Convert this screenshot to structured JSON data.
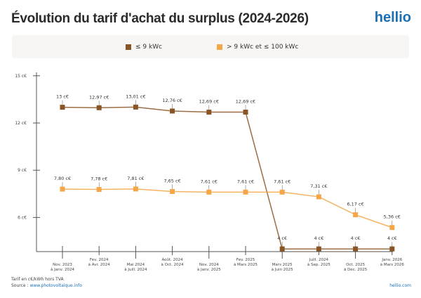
{
  "title": "Évolution du tarif d'achat du surplus (2024-2026)",
  "brand": "hellio",
  "footer": {
    "note": "Tarif en c€/kWh hors TVA",
    "source_label": "Source :",
    "source_link": "www.photovoltaique.info",
    "site": "hellio.com"
  },
  "chart_data": {
    "type": "line",
    "title": "Évolution du tarif d'achat du surplus (2024-2026)",
    "xlabel": "",
    "ylabel": "",
    "categories": [
      [
        "Nov. 2023",
        "à Janv. 2024"
      ],
      [
        "Fev. 2024",
        "à Avr. 2024"
      ],
      [
        "Mai 2024",
        "à Juill. 2024"
      ],
      [
        "Août. 2024",
        "à Oct. 2024"
      ],
      [
        "Nov. 2024",
        "à Janv. 2025"
      ],
      [
        "Fev. 2025",
        "à Mars 2025"
      ],
      [
        "Mars 2025",
        "à Juin 2025"
      ],
      [
        "Juill. 2024",
        "à Sep. 2025"
      ],
      [
        "Oct. 2025",
        "à Dec. 2025"
      ],
      [
        "Janv. 2026",
        "à Mars 2026"
      ]
    ],
    "ylim": [
      4,
      15
    ],
    "yticks": [
      {
        "value": 15,
        "label": "15 c€"
      },
      {
        "value": 12,
        "label": "12 c€"
      },
      {
        "value": 9,
        "label": "9 c€"
      },
      {
        "value": 6,
        "label": "6 c€"
      }
    ],
    "grid": false,
    "legend_position": "top",
    "series": [
      {
        "name": "≤ 9 kWc",
        "color": "#8a5524",
        "values": [
          13,
          12.97,
          13.01,
          12.76,
          12.69,
          12.69,
          4,
          4,
          4,
          4
        ],
        "labels": [
          "13 c€",
          "12,97 c€",
          "13,01 c€",
          "12,76 c€",
          "12,69 c€",
          "12,69 c€",
          "4 c€",
          "4 c€",
          "4 c€",
          "4 c€"
        ]
      },
      {
        "name": "> 9 kWc et ≤ 100 kWc",
        "color": "#f5a646",
        "values": [
          7.8,
          7.78,
          7.81,
          7.65,
          7.61,
          7.61,
          7.61,
          7.31,
          6.17,
          5.36
        ],
        "labels": [
          "7,80 c€",
          "7,78 c€",
          "7,81 c€",
          "7,65 c€",
          "7,61 c€",
          "7,61 c€",
          "7,61 c€",
          "7,31 c€",
          "6,17 c€",
          "5,36 c€"
        ]
      }
    ]
  }
}
